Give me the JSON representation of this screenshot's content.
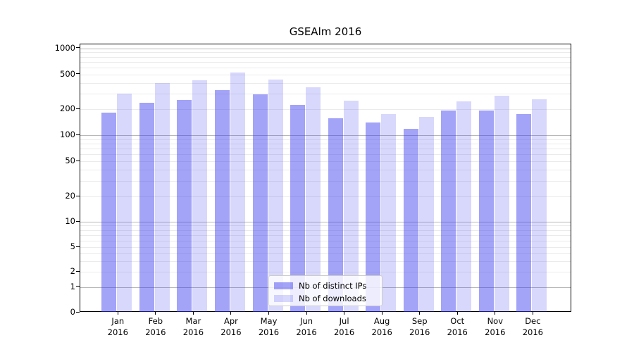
{
  "title": "GSEAlm 2016",
  "chart_data": {
    "type": "bar",
    "title": "GSEAlm 2016",
    "yscale": "symlog",
    "grid": true,
    "ylim": [
      0,
      1120
    ],
    "y_tick_labels": [
      "0",
      "1",
      "2",
      "5",
      "10",
      "20",
      "50",
      "100",
      "200",
      "500",
      "1000"
    ],
    "y_tick_values": [
      0,
      1,
      2,
      5,
      10,
      20,
      50,
      100,
      200,
      500,
      1000
    ],
    "categories": [
      "Jan 2016",
      "Feb 2016",
      "Mar 2016",
      "Apr 2016",
      "May 2016",
      "Jun 2016",
      "Jul 2016",
      "Aug 2016",
      "Sep 2016",
      "Oct 2016",
      "Nov 2016",
      "Dec 2016"
    ],
    "series": [
      {
        "name": "Nb of distinct IPs",
        "color": "rgba(60,60,240,0.47)",
        "values": [
          183,
          235,
          255,
          330,
          295,
          225,
          157,
          140,
          118,
          192,
          192,
          175
        ]
      },
      {
        "name": "Nb of downloads",
        "color": "rgba(60,60,240,0.20)",
        "values": [
          300,
          400,
          430,
          530,
          435,
          355,
          250,
          175,
          163,
          246,
          285,
          260
        ]
      }
    ],
    "legend_position": "lower center"
  }
}
